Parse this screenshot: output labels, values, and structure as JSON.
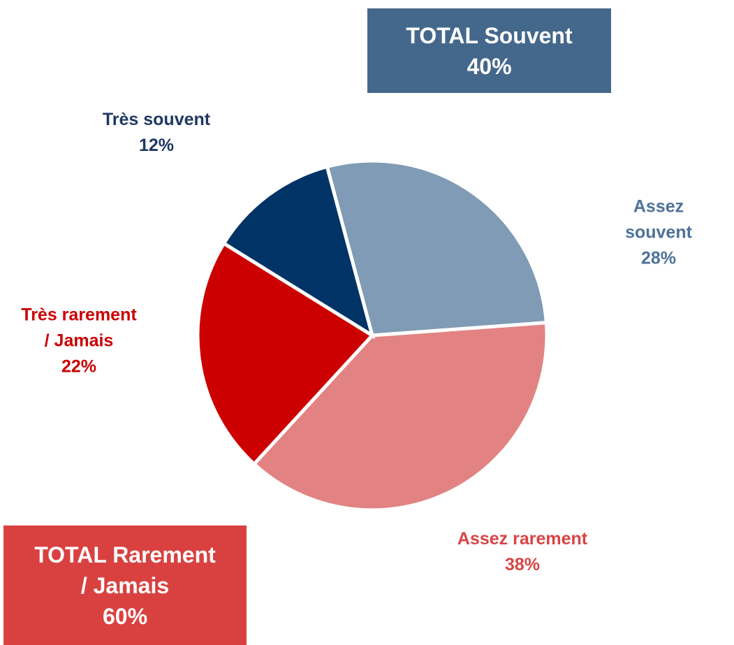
{
  "chart_data": {
    "type": "pie",
    "categories": [
      "Assez souvent",
      "Assez rarement",
      "Très rarement\n/ Jamais",
      "Très souvent"
    ],
    "values": [
      28,
      38,
      22,
      12
    ],
    "value_labels": [
      "28%",
      "38%",
      "22%",
      "12%"
    ],
    "colors": [
      "#7f9bb5",
      "#e38282",
      "#cc0000",
      "#003366"
    ],
    "label_colors": [
      "#4e7299",
      "#d94444",
      "#cc0000",
      "#1f3864"
    ],
    "start_angle": -15,
    "annotations": [
      {
        "text": "TOTAL Souvent",
        "value": 40,
        "value_label": "40%",
        "color": "#44688c"
      },
      {
        "text": "TOTAL Rarement\n/ Jamais",
        "value": 60,
        "value_label": "60%",
        "color": "#d94141"
      }
    ]
  }
}
